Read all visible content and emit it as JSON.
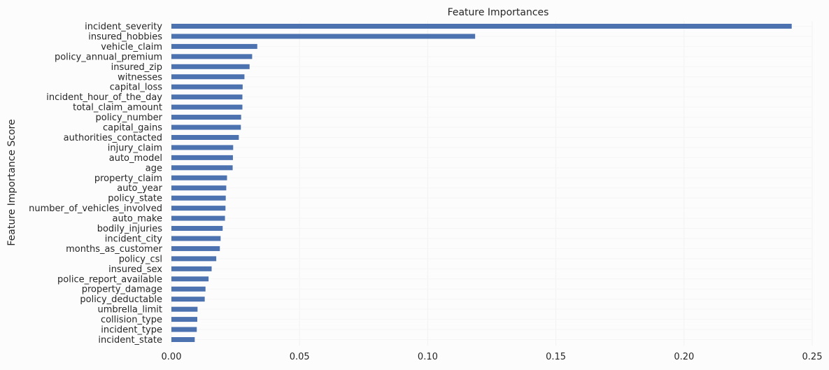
{
  "chart_data": {
    "type": "bar",
    "orientation": "horizontal",
    "title": "Feature Importances",
    "xlabel": "",
    "ylabel": "Feature Importance Score",
    "xlim": [
      0.0,
      0.25
    ],
    "xticks": [
      "0.00",
      "0.05",
      "0.10",
      "0.15",
      "0.20",
      "0.25"
    ],
    "grid": true,
    "bar_color": "#4c72b0",
    "background": "#fcfcfc",
    "categories": [
      "incident_severity",
      "insured_hobbies",
      "vehicle_claim",
      "policy_annual_premium",
      "insured_zip",
      "witnesses",
      "capital_loss",
      "incident_hour_of_the_day",
      "total_claim_amount",
      "policy_number",
      "capital_gains",
      "authorities_contacted",
      "injury_claim",
      "auto_model",
      "age",
      "property_claim",
      "auto_year",
      "policy_state",
      "number_of_vehicles_involved",
      "auto_make",
      "bodily_injuries",
      "incident_city",
      "months_as_customer",
      "policy_csl",
      "insured_sex",
      "police_report_available",
      "property_damage",
      "policy_deductable",
      "umbrella_limit",
      "collision_type",
      "incident_type",
      "incident_state"
    ],
    "values": [
      0.242,
      0.1185,
      0.0335,
      0.0315,
      0.0305,
      0.0285,
      0.0278,
      0.0277,
      0.0277,
      0.0272,
      0.0271,
      0.0263,
      0.0241,
      0.024,
      0.0239,
      0.0217,
      0.0214,
      0.0212,
      0.0211,
      0.0209,
      0.02,
      0.0192,
      0.0189,
      0.0175,
      0.0157,
      0.0145,
      0.0133,
      0.013,
      0.0102,
      0.0101,
      0.0099,
      0.0091
    ]
  }
}
